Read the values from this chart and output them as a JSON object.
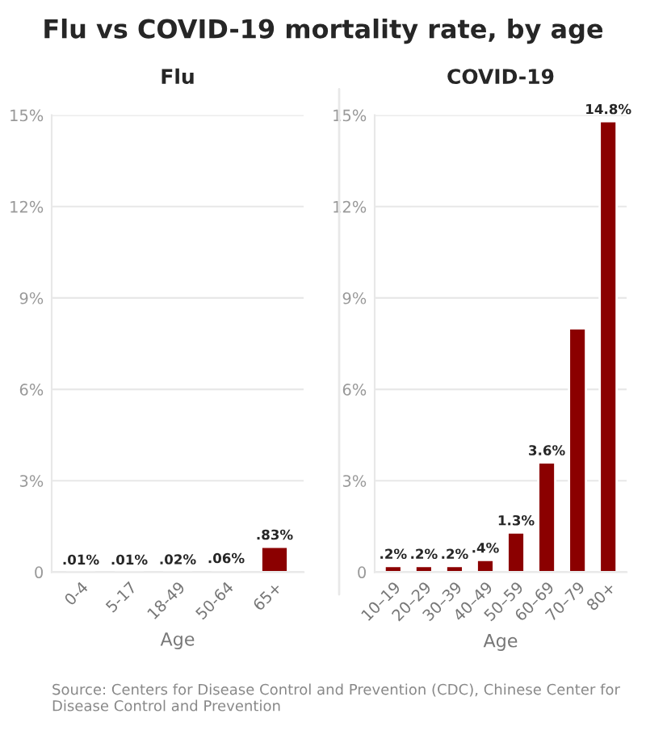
{
  "chart_data": [
    {
      "type": "bar",
      "title": "Flu vs COVID-19 mortality rate, by age",
      "subtitle": "Flu",
      "xlabel": "Age",
      "categories": [
        "0-4",
        "5-17",
        "18-49",
        "50-64",
        "65+"
      ],
      "values": [
        0.01,
        0.01,
        0.02,
        0.06,
        0.83
      ],
      "color": "#8b0000",
      "value_labels": [
        ".01%",
        ".01%",
        ".02%",
        ".06%",
        ".83%"
      ],
      "ylim": [
        0,
        15
      ],
      "yticks": [
        0,
        {
          "value": 3,
          "label": "3%"
        },
        {
          "value": 6,
          "label": "6%"
        },
        {
          "value": 9,
          "label": "9%"
        },
        {
          "value": 12,
          "label": "12%"
        },
        {
          "value": 15,
          "label": "15%"
        }
      ],
      "grid": "y",
      "annotations": [
        "Source: Centers for Disease Control and Prevention (CDC), Chinese Center for Disease Control and Prevention"
      ]
    },
    {
      "type": "bar",
      "subtitle": "COVID-19",
      "xlabel": "Age",
      "categories": [
        "10–19",
        "20–29",
        "30–39",
        "40–49",
        "50–59",
        "60–69",
        "70–79",
        "80+"
      ],
      "values": [
        0.2,
        0.2,
        0.2,
        0.4,
        1.3,
        3.6,
        8.0,
        14.8
      ],
      "color": "#8b0000",
      "value_labels": [
        ".2%",
        ".2%",
        ".2%",
        ".4%",
        "1.3%",
        "3.6%",
        null,
        "14.8%"
      ],
      "ylim": [
        0,
        15
      ],
      "yticks": [
        0,
        {
          "value": 3,
          "label": "3%"
        },
        {
          "value": 6,
          "label": "6%"
        },
        {
          "value": 9,
          "label": "9%"
        },
        {
          "value": 12,
          "label": "12%"
        },
        {
          "value": 15,
          "label": "15%"
        }
      ],
      "grid": "y"
    }
  ]
}
